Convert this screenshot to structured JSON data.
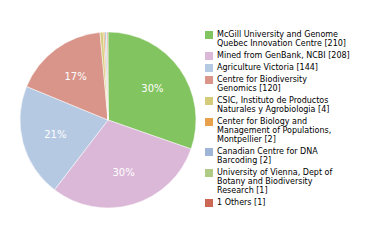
{
  "chart_data": {
    "type": "pie",
    "categories": [
      "McGill University and Genome\nQuebec Innovation Centre [210]",
      "Mined from GenBank, NCBI [208]",
      "Agriculture Victoria [144]",
      "Centre for Biodiversity\nGenomics [120]",
      "CSIC, Instituto de Productos\nNaturales y Agrobiologia [4]",
      "Center for Biology and\nManagement of Populations,\nMontpellier [2]",
      "Canadian Centre for DNA\nBarcoding [2]",
      "University of Vienna, Dept of\nBotany and Biodiversity\nResearch [1]",
      "1 Others [1]"
    ],
    "values": [
      30.3468,
      30.0578,
      20.8092,
      17.341,
      0.578,
      0.289,
      0.289,
      0.1445,
      0.1445
    ],
    "value_labels": [
      "30%",
      "30%",
      "21%",
      "17%",
      null,
      null,
      null,
      null,
      null
    ],
    "colors": [
      "#82c45f",
      "#dbb8d8",
      "#b5c9e2",
      "#d9958a",
      "#d4cc7a",
      "#e8a04a",
      "#a0b4d6",
      "#b0cc84",
      "#cc6655"
    ],
    "data_labels": true,
    "legend": "right"
  }
}
